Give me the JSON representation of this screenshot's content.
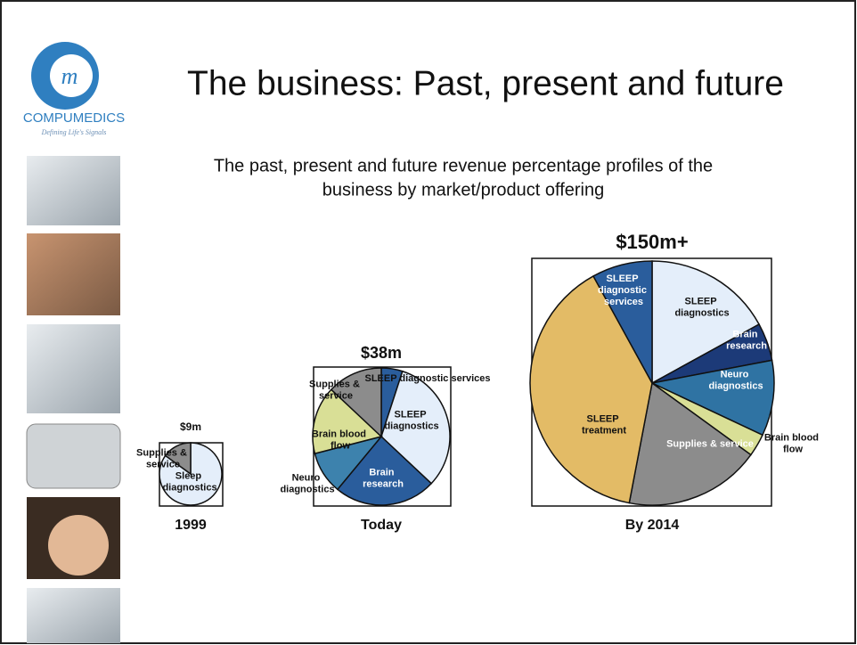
{
  "slide": {
    "title": "The business:  Past, present and future",
    "subtitle_lines": [
      "The past, present and future revenue percentage profiles of the",
      "business by market/product offering"
    ],
    "logo_name": "COMPUMEDICS",
    "logo_tagline": "Defining Life's Signals"
  },
  "chart_data": [
    {
      "type": "pie",
      "title": "$9m",
      "caption": "1999",
      "categories": [
        "Sleep diagnostics",
        "Supplies & service"
      ],
      "values": [
        85,
        15
      ],
      "colors": [
        "#e4eefa",
        "#8c8c8c"
      ]
    },
    {
      "type": "pie",
      "title": "$38m",
      "caption": "Today",
      "categories": [
        "SLEEP diagnostic services",
        "SLEEP diagnostics",
        "Brain research",
        "Neuro diagnostics",
        "Brain blood flow",
        "Supplies & service"
      ],
      "values": [
        5,
        32,
        24,
        10,
        16,
        13
      ],
      "colors": [
        "#2a5d9c",
        "#e4eefa",
        "#2a5d9c",
        "#3d82ad",
        "#d9df96",
        "#8c8c8c"
      ]
    },
    {
      "type": "pie",
      "title": "$150m+",
      "caption": "By 2014",
      "categories": [
        "SLEEP diagnostics",
        "Brain research",
        "Neuro diagnostics",
        "Brain blood flow",
        "Supplies & service",
        "SLEEP treatment",
        "SLEEP diagnostic services"
      ],
      "values": [
        17,
        5,
        10,
        3,
        18,
        39,
        8
      ],
      "colors": [
        "#e4eefa",
        "#1c3a78",
        "#2f73a3",
        "#d9df96",
        "#8c8c8c",
        "#e3bb66",
        "#2a5d9c"
      ]
    }
  ]
}
